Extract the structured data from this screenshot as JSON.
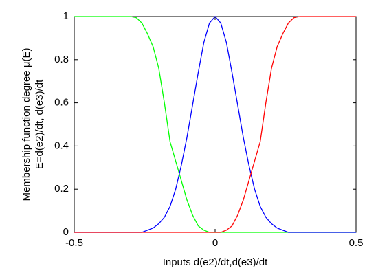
{
  "chart_data": {
    "type": "line",
    "xlabel": "Inputs d(e2)/dt,d(e3)/dt",
    "ylabel": [
      "Membership function degree μ(E)",
      "E=d(e2)/dt, d(e3)/dt"
    ],
    "x": [
      -0.5,
      -0.3,
      -0.28,
      -0.26,
      -0.24,
      -0.22,
      -0.2,
      -0.18,
      -0.16,
      -0.14,
      -0.12,
      -0.1,
      -0.08,
      -0.06,
      -0.04,
      -0.02,
      0,
      0.02,
      0.04,
      0.06,
      0.08,
      0.1,
      0.12,
      0.14,
      0.16,
      0.18,
      0.2,
      0.22,
      0.24,
      0.26,
      0.28,
      0.3,
      0.5
    ],
    "series": [
      {
        "color": "#00ff00",
        "values": [
          1,
          1,
          0.995,
          0.97,
          0.92,
          0.86,
          0.76,
          0.6,
          0.42,
          0.33,
          0.24,
          0.15,
          0.08,
          0.03,
          0.01,
          0,
          0,
          0,
          0,
          0,
          0,
          0,
          0,
          0,
          0,
          0,
          0,
          0,
          0,
          0,
          0,
          0,
          0
        ]
      },
      {
        "color": "#0000ff",
        "values": [
          0,
          0,
          0,
          0,
          0.01,
          0.02,
          0.04,
          0.07,
          0.12,
          0.2,
          0.31,
          0.44,
          0.59,
          0.74,
          0.88,
          0.97,
          1,
          0.97,
          0.88,
          0.74,
          0.59,
          0.44,
          0.31,
          0.2,
          0.12,
          0.07,
          0.04,
          0.02,
          0.01,
          0,
          0,
          0,
          0
        ]
      },
      {
        "color": "#ff0000",
        "values": [
          0,
          0,
          0,
          0,
          0,
          0,
          0,
          0,
          0,
          0,
          0,
          0,
          0,
          0,
          0,
          0,
          0,
          0,
          0.01,
          0.03,
          0.08,
          0.15,
          0.24,
          0.33,
          0.42,
          0.6,
          0.76,
          0.86,
          0.92,
          0.97,
          0.995,
          1,
          1
        ]
      }
    ],
    "xlim": [
      -0.5,
      0.5
    ],
    "xticks": [
      -0.5,
      0,
      0.5
    ],
    "ylim": [
      0,
      1
    ],
    "yticks": [
      0,
      0.2,
      0.4,
      0.6,
      0.8,
      1
    ]
  }
}
